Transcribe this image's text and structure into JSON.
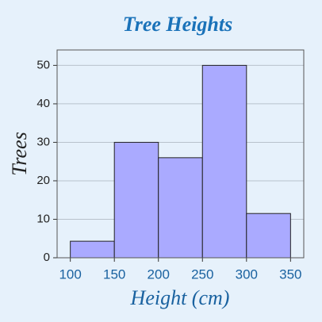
{
  "chart_data": {
    "type": "histogram",
    "title": "Tree Heights",
    "x_label": "Height (cm)",
    "y_label": "Trees",
    "bins": [
      100,
      150,
      200,
      250,
      300,
      350
    ],
    "values": [
      4.3,
      30,
      26,
      50,
      11.5
    ],
    "color": "#aaaaff",
    "xlim": [
      85,
      365
    ],
    "xticks": [
      100,
      150,
      200,
      250,
      300,
      350
    ],
    "ylim": [
      0,
      54
    ],
    "yticks": [
      0,
      10,
      20,
      30,
      40,
      50
    ],
    "grid": true
  }
}
